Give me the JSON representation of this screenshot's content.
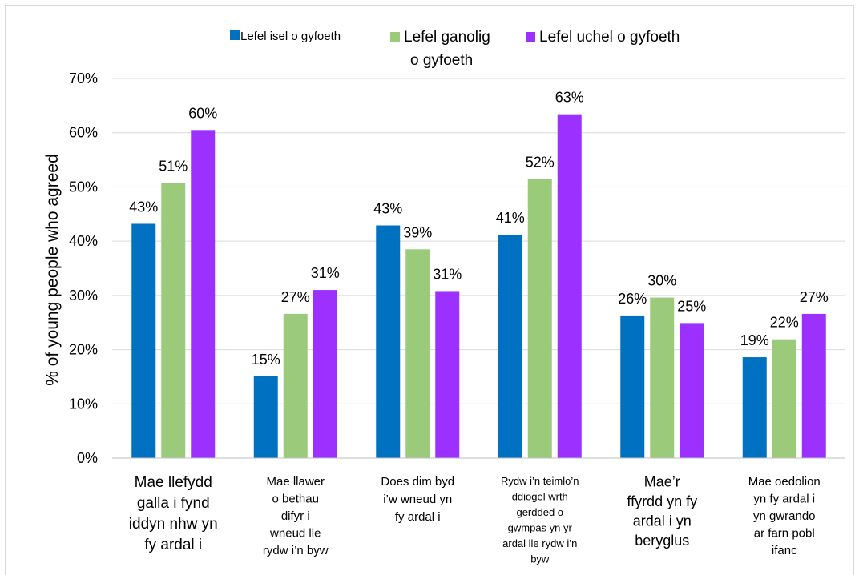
{
  "chart_data": {
    "type": "bar",
    "title": "",
    "xlabel": "",
    "ylabel": "% of young people who agreed",
    "ylim": [
      0,
      70
    ],
    "y_ticks": [
      "0%",
      "10%",
      "20%",
      "30%",
      "40%",
      "50%",
      "60%",
      "70%"
    ],
    "grid": true,
    "legend_position": "top",
    "categories": [
      "Mae llefydd galla i fynd iddyn nhw yn fy ardal i",
      "Mae llawer o bethau difyr i wneud lle rydw i’n byw",
      "Does dim byd i’w wneud yn fy ardal i",
      "Rydw i’n teimlo’n ddiogel wrth gerdded o gwmpas yn yr ardal lle rydw i’n byw",
      "Mae’r ffyrdd yn fy ardal i yn beryglus",
      "Mae oedolion yn fy ardal i yn gwrando ar farn pobl ifanc"
    ],
    "series": [
      {
        "name": "Lefel isel o gyfoeth",
        "color": "#0070c0",
        "values": [
          43.2,
          15.1,
          42.9,
          41.2,
          26.3,
          18.6
        ],
        "labels": [
          "43%",
          "15%",
          "43%",
          "41%",
          "26%",
          "19%"
        ]
      },
      {
        "name": "Lefel ganolig o gyfoeth",
        "color": "#9bcb7a",
        "values": [
          50.7,
          26.6,
          38.5,
          51.5,
          29.6,
          21.9
        ],
        "labels": [
          "51%",
          "27%",
          "39%",
          "52%",
          "30%",
          "22%"
        ]
      },
      {
        "name": "Lefel uchel o gyfoeth",
        "color": "#9b30ff",
        "values": [
          60.5,
          31.0,
          30.8,
          63.4,
          24.9,
          26.6
        ],
        "labels": [
          "60%",
          "31%",
          "31%",
          "63%",
          "25%",
          "27%"
        ]
      }
    ]
  }
}
